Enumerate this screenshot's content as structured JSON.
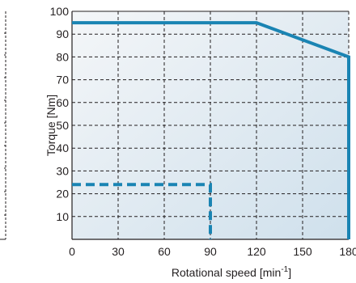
{
  "chart_data": {
    "type": "line",
    "title": "",
    "xlabel": {
      "prefix": "Rotational speed [min",
      "superscript": "-1",
      "suffix": "]"
    },
    "ylabel": "Torque [Nm]",
    "xlim": [
      0,
      180
    ],
    "ylim": [
      0,
      100
    ],
    "x_ticks": [
      0,
      30,
      60,
      90,
      120,
      150,
      180
    ],
    "x_tick_labels": [
      "0",
      "30",
      "60",
      "90",
      "120",
      "150",
      "180"
    ],
    "y_ticks": [
      10,
      20,
      30,
      40,
      50,
      60,
      70,
      80,
      90,
      100
    ],
    "y_tick_labels": [
      "10",
      "20",
      "30",
      "40",
      "50",
      "60",
      "70",
      "80",
      "90",
      "100"
    ],
    "grid": true,
    "background": "gradient",
    "series": [
      {
        "style": "solid",
        "color": "#1a84b3",
        "points": [
          [
            0,
            95
          ],
          [
            120,
            95
          ],
          [
            180,
            80
          ],
          [
            180,
            0
          ]
        ]
      },
      {
        "style": "dashed",
        "color": "#1a84b3",
        "points": [
          [
            0,
            24
          ],
          [
            90,
            24
          ],
          [
            90,
            0
          ]
        ]
      }
    ],
    "colors": {
      "line": "#1a84b3",
      "grid": "#231f20",
      "axis": "#231f20",
      "plot_bg_start": "#f4f6f8",
      "plot_bg_end": "#cfe0ec"
    }
  }
}
